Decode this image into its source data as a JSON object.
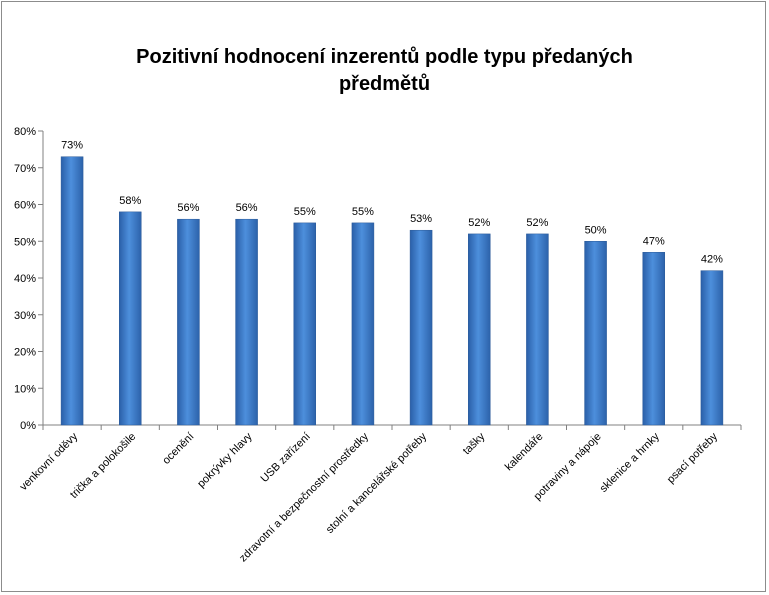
{
  "chart_data": {
    "type": "bar",
    "title_line1": "Pozitivní hodnocení inzerentů podle typu předaných",
    "title_line2": "předmětů",
    "categories": [
      "venkovní oděvy",
      "trička a polokošile",
      "ocenění",
      "pokrývky hlavy",
      "USB zařízení",
      "zdravotní a bezpečnostní prostředky",
      "stolní a kancelářské potřeby",
      "tašky",
      "kalendáře",
      "potraviny a nápoje",
      "sklenice a hrnky",
      "psací potřeby"
    ],
    "values": [
      73,
      58,
      56,
      56,
      55,
      55,
      53,
      52,
      52,
      50,
      47,
      42
    ],
    "value_labels": [
      "73%",
      "58%",
      "56%",
      "56%",
      "55%",
      "55%",
      "53%",
      "52%",
      "52%",
      "50%",
      "47%",
      "42%"
    ],
    "y_ticks": [
      "0%",
      "10%",
      "20%",
      "30%",
      "40%",
      "50%",
      "60%",
      "70%",
      "80%"
    ],
    "ylim": [
      0,
      80
    ],
    "xlabel": "",
    "ylabel": "",
    "grid": false,
    "legend": false,
    "bar_color": "#3a78c4"
  }
}
